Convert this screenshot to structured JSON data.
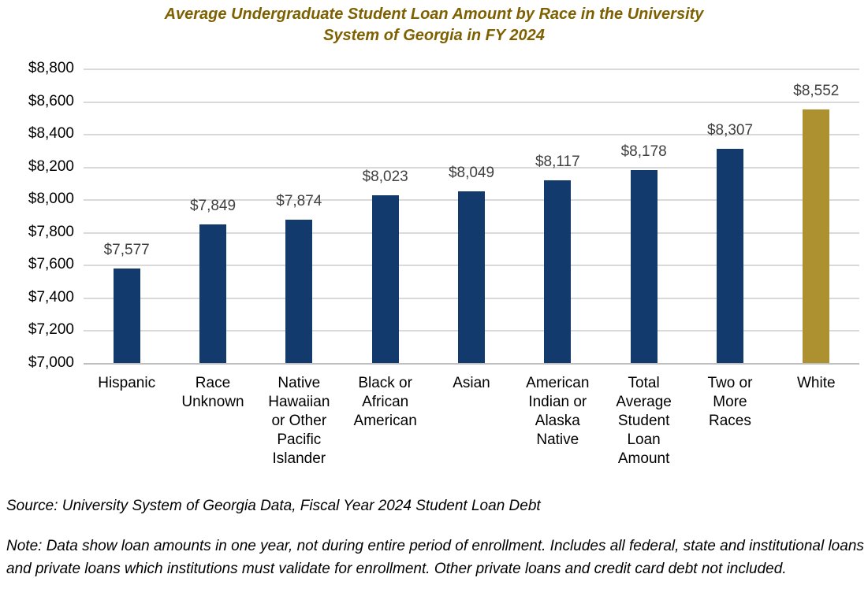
{
  "title": {
    "line1": "Average Undergraduate Student Loan Amount by Race in the University",
    "line2": "System of Georgia in FY 2024",
    "color": "#7F6000"
  },
  "chart_data": {
    "type": "bar",
    "title": "Average Undergraduate Student Loan Amount by Race in the University System of Georgia in FY 2024",
    "categories": [
      "Hispanic",
      "Race Unknown",
      "Native Hawaiian or Other Pacific Islander",
      "Black or African American",
      "Asian",
      "American Indian or Alaska Native",
      "Total Average Student Loan Amount",
      "Two or More Races",
      "White"
    ],
    "values": [
      7577,
      7849,
      7874,
      8023,
      8049,
      8117,
      8178,
      8307,
      8552
    ],
    "value_labels": [
      "$7,577",
      "$7,849",
      "$7,874",
      "$8,023",
      "$8,049",
      "$8,117",
      "$8,178",
      "$8,307",
      "$8,552"
    ],
    "xlabel": "",
    "ylabel": "",
    "ylim": [
      7000,
      8800
    ],
    "ytick_step": 200,
    "ytick_labels": [
      "$7,000",
      "$7,200",
      "$7,400",
      "$7,600",
      "$7,800",
      "$8,000",
      "$8,200",
      "$8,400",
      "$8,600",
      "$8,800"
    ],
    "grid": true,
    "legend": "none",
    "bar_color": "#123A6D",
    "highlight_color": "#AD9030",
    "highlight_index": 8,
    "value_label_color": "#404040"
  },
  "footer": {
    "source": "Source: University System of Georgia Data, Fiscal Year 2024 Student Loan Debt",
    "note": "Note: Data show loan amounts in one year, not during entire period of enrollment. Includes all federal, state and institutional loans and private loans which institutions must validate for enrollment. Other private loans and credit card debt not included."
  }
}
